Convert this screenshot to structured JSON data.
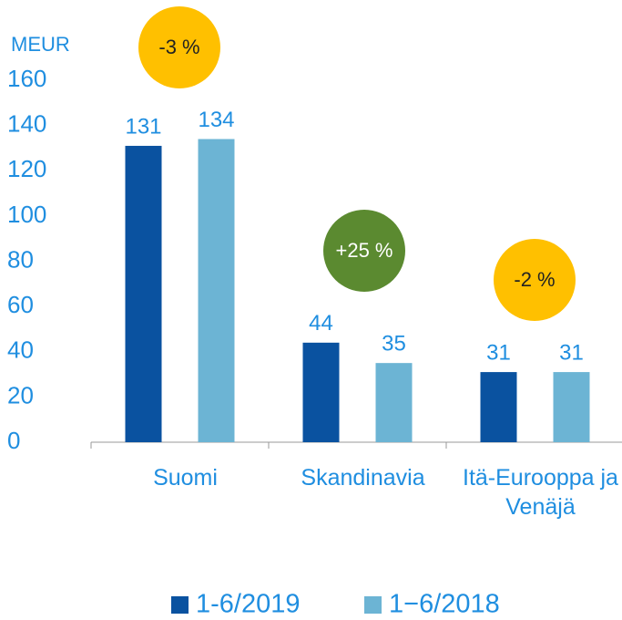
{
  "chart_data": {
    "type": "bar",
    "y_axis_label": "MEUR",
    "categories": [
      "Suomi",
      "Skandinavia",
      "Itä-Eurooppa ja Venäjä"
    ],
    "series": [
      {
        "name": "1-6/2019",
        "color": "#0a52a0",
        "values": [
          131,
          44,
          31
        ]
      },
      {
        "name": "1−6/2018",
        "color": "#6cb4d4",
        "values": [
          134,
          35,
          31
        ]
      }
    ],
    "ylim": [
      0,
      160
    ],
    "yticks": [
      0,
      20,
      40,
      60,
      80,
      100,
      120,
      140,
      160
    ],
    "grid": false,
    "legend": "bottom",
    "annotations": [
      {
        "text": "-3 %",
        "color": "#ffc000"
      },
      {
        "text": "+25 %",
        "color": "#5b8a30"
      },
      {
        "text": "-2 %",
        "color": "#ffc000"
      }
    ]
  }
}
